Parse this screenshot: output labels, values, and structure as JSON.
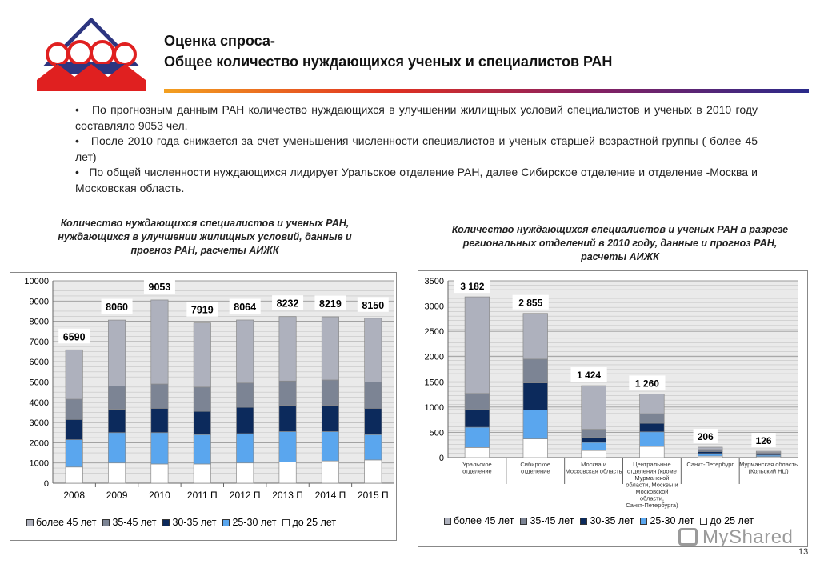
{
  "header": {
    "title_line1": "Оценка спроса-",
    "title_line2": "Общее количество нуждающихся ученых и специалистов РАН"
  },
  "bullets": [
    "По прогнозным данным РАН количество нуждающихся в улучшении жилищных условий специалистов и ученых в 2010 году составляло 9053 чел.",
    "После 2010 года снижается за счет уменьшения численности специалистов и ученых старшей возрастной группы ( более 45 лет)",
    "По общей численности нуждающихся лидирует Уральское отделение РАН, далее Сибирское отделение  и отделение -Москва и Московская область."
  ],
  "colors": {
    "до 25 лет": "#ffffff",
    "25-30 лет": "#5aa6ee",
    "30-35 лет": "#0c2a5c",
    "35-45 лет": "#7c8494",
    "более 45 лет": "#aeb1bd",
    "accent_red": "#e02020"
  },
  "chart_data": [
    {
      "type": "bar",
      "stacked": true,
      "title": "Количество  нуждающихся специалистов и ученых РАН, нуждающихся в улучшении жилищных условий, данные и прогноз РАН, расчеты АИЖК",
      "categories": [
        "2008",
        "2009",
        "2010",
        "2011 П",
        "2012 П",
        "2013 П",
        "2014 П",
        "2015 П"
      ],
      "series": [
        {
          "name": "до 25 лет",
          "values": [
            800,
            1000,
            950,
            950,
            1000,
            1050,
            1100,
            1150
          ]
        },
        {
          "name": "25-30 лет",
          "values": [
            1350,
            1500,
            1550,
            1450,
            1450,
            1500,
            1450,
            1250
          ]
        },
        {
          "name": "30-35 лет",
          "values": [
            1000,
            1150,
            1200,
            1150,
            1300,
            1300,
            1300,
            1300
          ]
        },
        {
          "name": "35-45 лет",
          "values": [
            1000,
            1150,
            1200,
            1200,
            1200,
            1200,
            1250,
            1300
          ]
        },
        {
          "name": "более 45 лет",
          "values": [
            2440,
            3260,
            4153,
            3169,
            3114,
            3182,
            3119,
            3150
          ]
        }
      ],
      "totals": [
        "6590",
        "8060",
        "9053",
        "7919",
        "8064",
        "8232",
        "8219",
        "8150"
      ],
      "ylim": [
        0,
        10000
      ],
      "yticks": [
        0,
        1000,
        2000,
        3000,
        4000,
        5000,
        6000,
        7000,
        8000,
        9000,
        10000
      ],
      "grid": true,
      "legend": "bottom",
      "legend_order": [
        "более 45 лет",
        "35-45 лет",
        "30-35 лет",
        "25-30 лет",
        "до 25 лет"
      ]
    },
    {
      "type": "bar",
      "stacked": true,
      "title": "Количество  нуждающихся специалистов и ученых РАН в разрезе региональных отделений в 2010 году, данные и прогноз РАН, расчеты АИЖК",
      "categories": [
        "Уральское отделение",
        "Сибирское отделение",
        "Москва и Московская область",
        "Центральные отделения (кроме Мурманской области, Москвы и Московской области, Санкт-Петербурга)",
        "Санкт-Петербург",
        "Мурманская область (Кольский НЦ)"
      ],
      "series": [
        {
          "name": "до 25 лет",
          "values": [
            200,
            370,
            140,
            220,
            30,
            20
          ]
        },
        {
          "name": "25-30 лет",
          "values": [
            400,
            570,
            160,
            290,
            50,
            30
          ]
        },
        {
          "name": "30-35 лет",
          "values": [
            350,
            540,
            100,
            170,
            40,
            25
          ]
        },
        {
          "name": "35-45 лет",
          "values": [
            320,
            470,
            160,
            190,
            40,
            25
          ]
        },
        {
          "name": "более 45 лет",
          "values": [
            1912,
            905,
            864,
            390,
            46,
            26
          ]
        }
      ],
      "totals": [
        "3 182",
        "2 855",
        "1 424",
        "1 260",
        "206",
        "126"
      ],
      "ylim": [
        0,
        3500
      ],
      "yticks": [
        0,
        500,
        1000,
        1500,
        2000,
        2500,
        3000,
        3500
      ],
      "grid": true,
      "legend": "bottom",
      "legend_order": [
        "более 45 лет",
        "35-45 лет",
        "30-35 лет",
        "25-30 лет",
        "до 25 лет"
      ]
    }
  ],
  "watermark": "MyShared",
  "page_number": "13"
}
